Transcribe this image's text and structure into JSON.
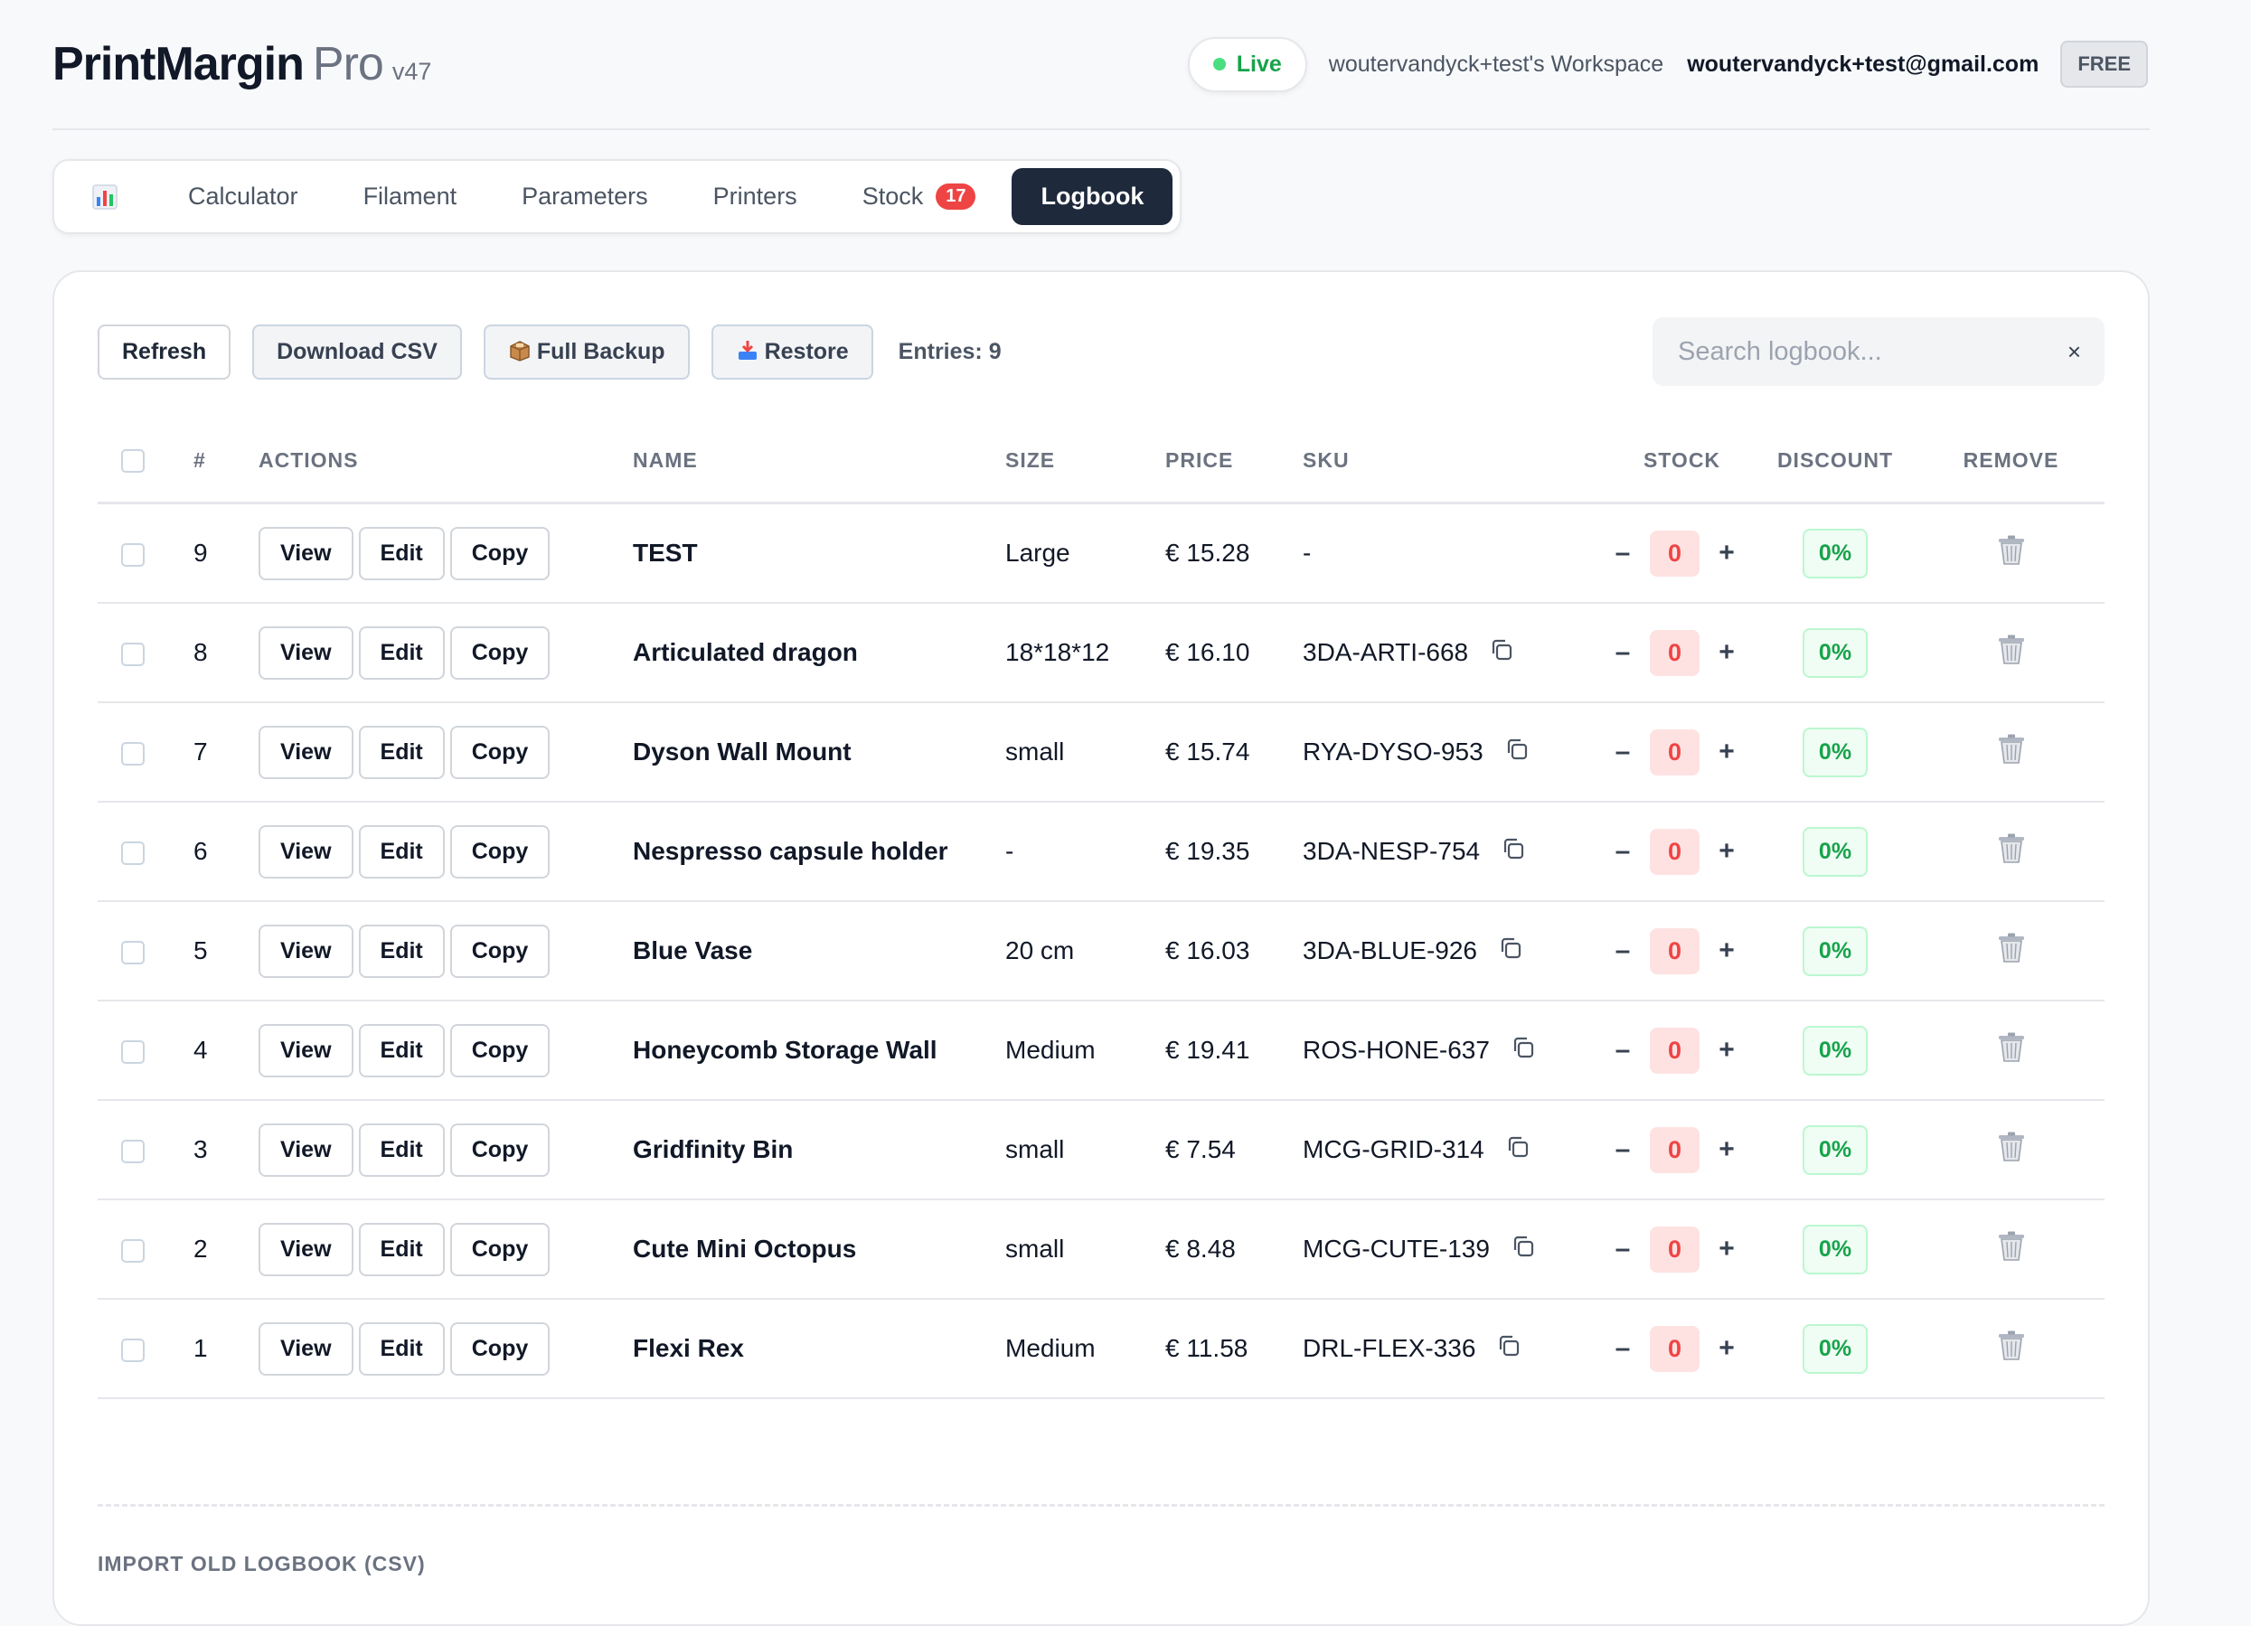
{
  "app": {
    "name": "PrintMargin",
    "suffix": "Pro",
    "version": "v47"
  },
  "header": {
    "status_label": "Live",
    "workspace": "woutervandyck+test's Workspace",
    "email": "woutervandyck+test@gmail.com",
    "plan": "FREE"
  },
  "tabs": [
    {
      "label": "Calculator"
    },
    {
      "label": "Filament"
    },
    {
      "label": "Parameters"
    },
    {
      "label": "Printers"
    },
    {
      "label": "Stock",
      "badge": "17"
    },
    {
      "label": "Logbook",
      "active": true
    }
  ],
  "toolbar": {
    "refresh": "Refresh",
    "download_csv": "Download CSV",
    "full_backup": "Full Backup",
    "restore": "Restore",
    "entries": "Entries: 9",
    "search_placeholder": "Search logbook...",
    "clear": "×"
  },
  "table": {
    "headers": {
      "num": "#",
      "actions": "ACTIONS",
      "name": "NAME",
      "size": "SIZE",
      "price": "PRICE",
      "sku": "SKU",
      "stock": "STOCK",
      "discount": "DISCOUNT",
      "remove": "REMOVE"
    },
    "action_labels": {
      "view": "View",
      "edit": "Edit",
      "copy": "Copy"
    },
    "stepper": {
      "minus": "–",
      "plus": "+"
    },
    "rows": [
      {
        "num": "9",
        "name": "TEST",
        "size": "Large",
        "price": "€ 15.28",
        "sku": "-",
        "stock": "0",
        "discount": "0%"
      },
      {
        "num": "8",
        "name": "Articulated dragon",
        "size": "18*18*12",
        "price": "€ 16.10",
        "sku": "3DA-ARTI-668",
        "stock": "0",
        "discount": "0%"
      },
      {
        "num": "7",
        "name": "Dyson Wall Mount",
        "size": "small",
        "price": "€ 15.74",
        "sku": "RYA-DYSO-953",
        "stock": "0",
        "discount": "0%"
      },
      {
        "num": "6",
        "name": "Nespresso capsule holder",
        "size": "-",
        "price": "€ 19.35",
        "sku": "3DA-NESP-754",
        "stock": "0",
        "discount": "0%"
      },
      {
        "num": "5",
        "name": "Blue Vase",
        "size": "20 cm",
        "price": "€ 16.03",
        "sku": "3DA-BLUE-926",
        "stock": "0",
        "discount": "0%"
      },
      {
        "num": "4",
        "name": "Honeycomb Storage Wall",
        "size": "Medium",
        "price": "€ 19.41",
        "sku": "ROS-HONE-637",
        "stock": "0",
        "discount": "0%"
      },
      {
        "num": "3",
        "name": "Gridfinity Bin",
        "size": "small",
        "price": "€ 7.54",
        "sku": "MCG-GRID-314",
        "stock": "0",
        "discount": "0%"
      },
      {
        "num": "2",
        "name": "Cute Mini Octopus",
        "size": "small",
        "price": "€ 8.48",
        "sku": "MCG-CUTE-139",
        "stock": "0",
        "discount": "0%"
      },
      {
        "num": "1",
        "name": "Flexi Rex",
        "size": "Medium",
        "price": "€ 11.58",
        "sku": "DRL-FLEX-336",
        "stock": "0",
        "discount": "0%"
      }
    ]
  },
  "import_title": "IMPORT OLD LOGBOOK (CSV)",
  "colors": {
    "accent_dark": "#1e293b",
    "badge_red": "#ef4444",
    "live_green": "#16a34a",
    "discount_green": "#16a34a"
  }
}
